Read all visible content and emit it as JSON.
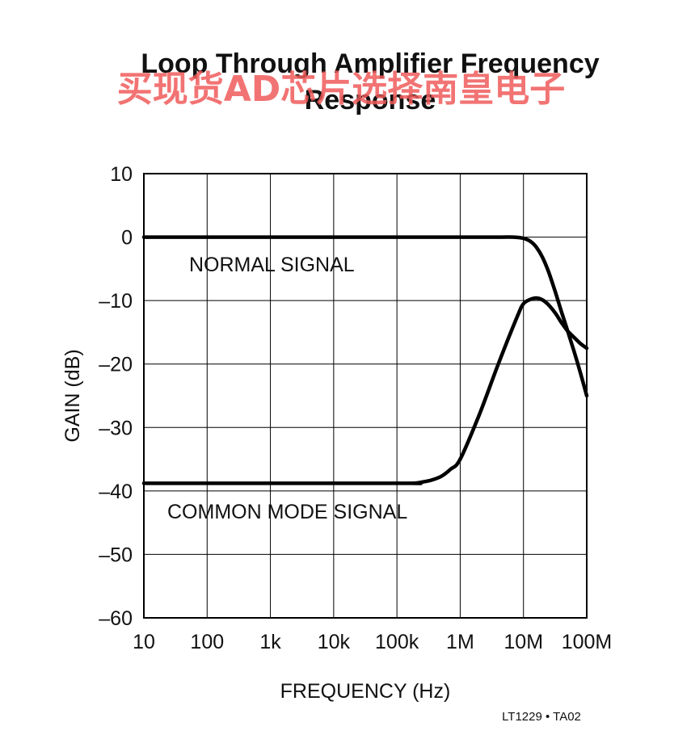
{
  "watermark": "买现货AD芯片选择南皇电子",
  "figure_note": "LT1229 • TA02",
  "chart_data": {
    "type": "line",
    "title_lines": [
      "Loop Through Amplifier Frequency",
      "Response"
    ],
    "xlabel": "FREQUENCY (Hz)",
    "ylabel": "GAIN (dB)",
    "x_scale": "log",
    "xlim": [
      10,
      100000000
    ],
    "ylim": [
      -60,
      10
    ],
    "x_ticks": [
      {
        "value": 10,
        "label": "10"
      },
      {
        "value": 100,
        "label": "100"
      },
      {
        "value": 1000,
        "label": "1k"
      },
      {
        "value": 10000,
        "label": "10k"
      },
      {
        "value": 100000,
        "label": "100k"
      },
      {
        "value": 1000000,
        "label": "1M"
      },
      {
        "value": 10000000,
        "label": "10M"
      },
      {
        "value": 100000000,
        "label": "100M"
      }
    ],
    "y_ticks": [
      {
        "value": 10,
        "label": "10"
      },
      {
        "value": 0,
        "label": "0"
      },
      {
        "value": -10,
        "label": "–10"
      },
      {
        "value": -20,
        "label": "–20"
      },
      {
        "value": -30,
        "label": "–30"
      },
      {
        "value": -40,
        "label": "–40"
      },
      {
        "value": -50,
        "label": "–50"
      },
      {
        "value": -60,
        "label": "–60"
      }
    ],
    "grid": true,
    "legend": "none",
    "series": [
      {
        "name": "NORMAL SIGNAL",
        "x": [
          10,
          1000000,
          4000000,
          7000000,
          10000000,
          13000000,
          16000000,
          20000000,
          25000000,
          32000000,
          40000000,
          50000000,
          63000000,
          80000000,
          100000000
        ],
        "y": [
          0,
          0,
          0,
          0,
          -0.2,
          -0.7,
          -1.6,
          -3.2,
          -5.5,
          -8.7,
          -11.8,
          -14.8,
          -18,
          -21.5,
          -25
        ]
      },
      {
        "name": "COMMON MODE SIGNAL",
        "x": [
          10,
          100000,
          180000,
          250000,
          350000,
          500000,
          700000,
          1000000,
          2000000,
          4000000,
          8000000,
          10000000,
          13000000,
          16000000,
          20000000,
          25000000,
          32000000,
          40000000,
          50000000,
          63000000,
          80000000,
          100000000
        ],
        "y": [
          -38.8,
          -38.8,
          -38.8,
          -38.6,
          -38.3,
          -37.7,
          -36.6,
          -35,
          -28,
          -20,
          -12.5,
          -10.5,
          -9.8,
          -9.6,
          -9.9,
          -10.7,
          -12,
          -13.5,
          -14.8,
          -15.8,
          -16.8,
          -17.5
        ]
      }
    ]
  }
}
